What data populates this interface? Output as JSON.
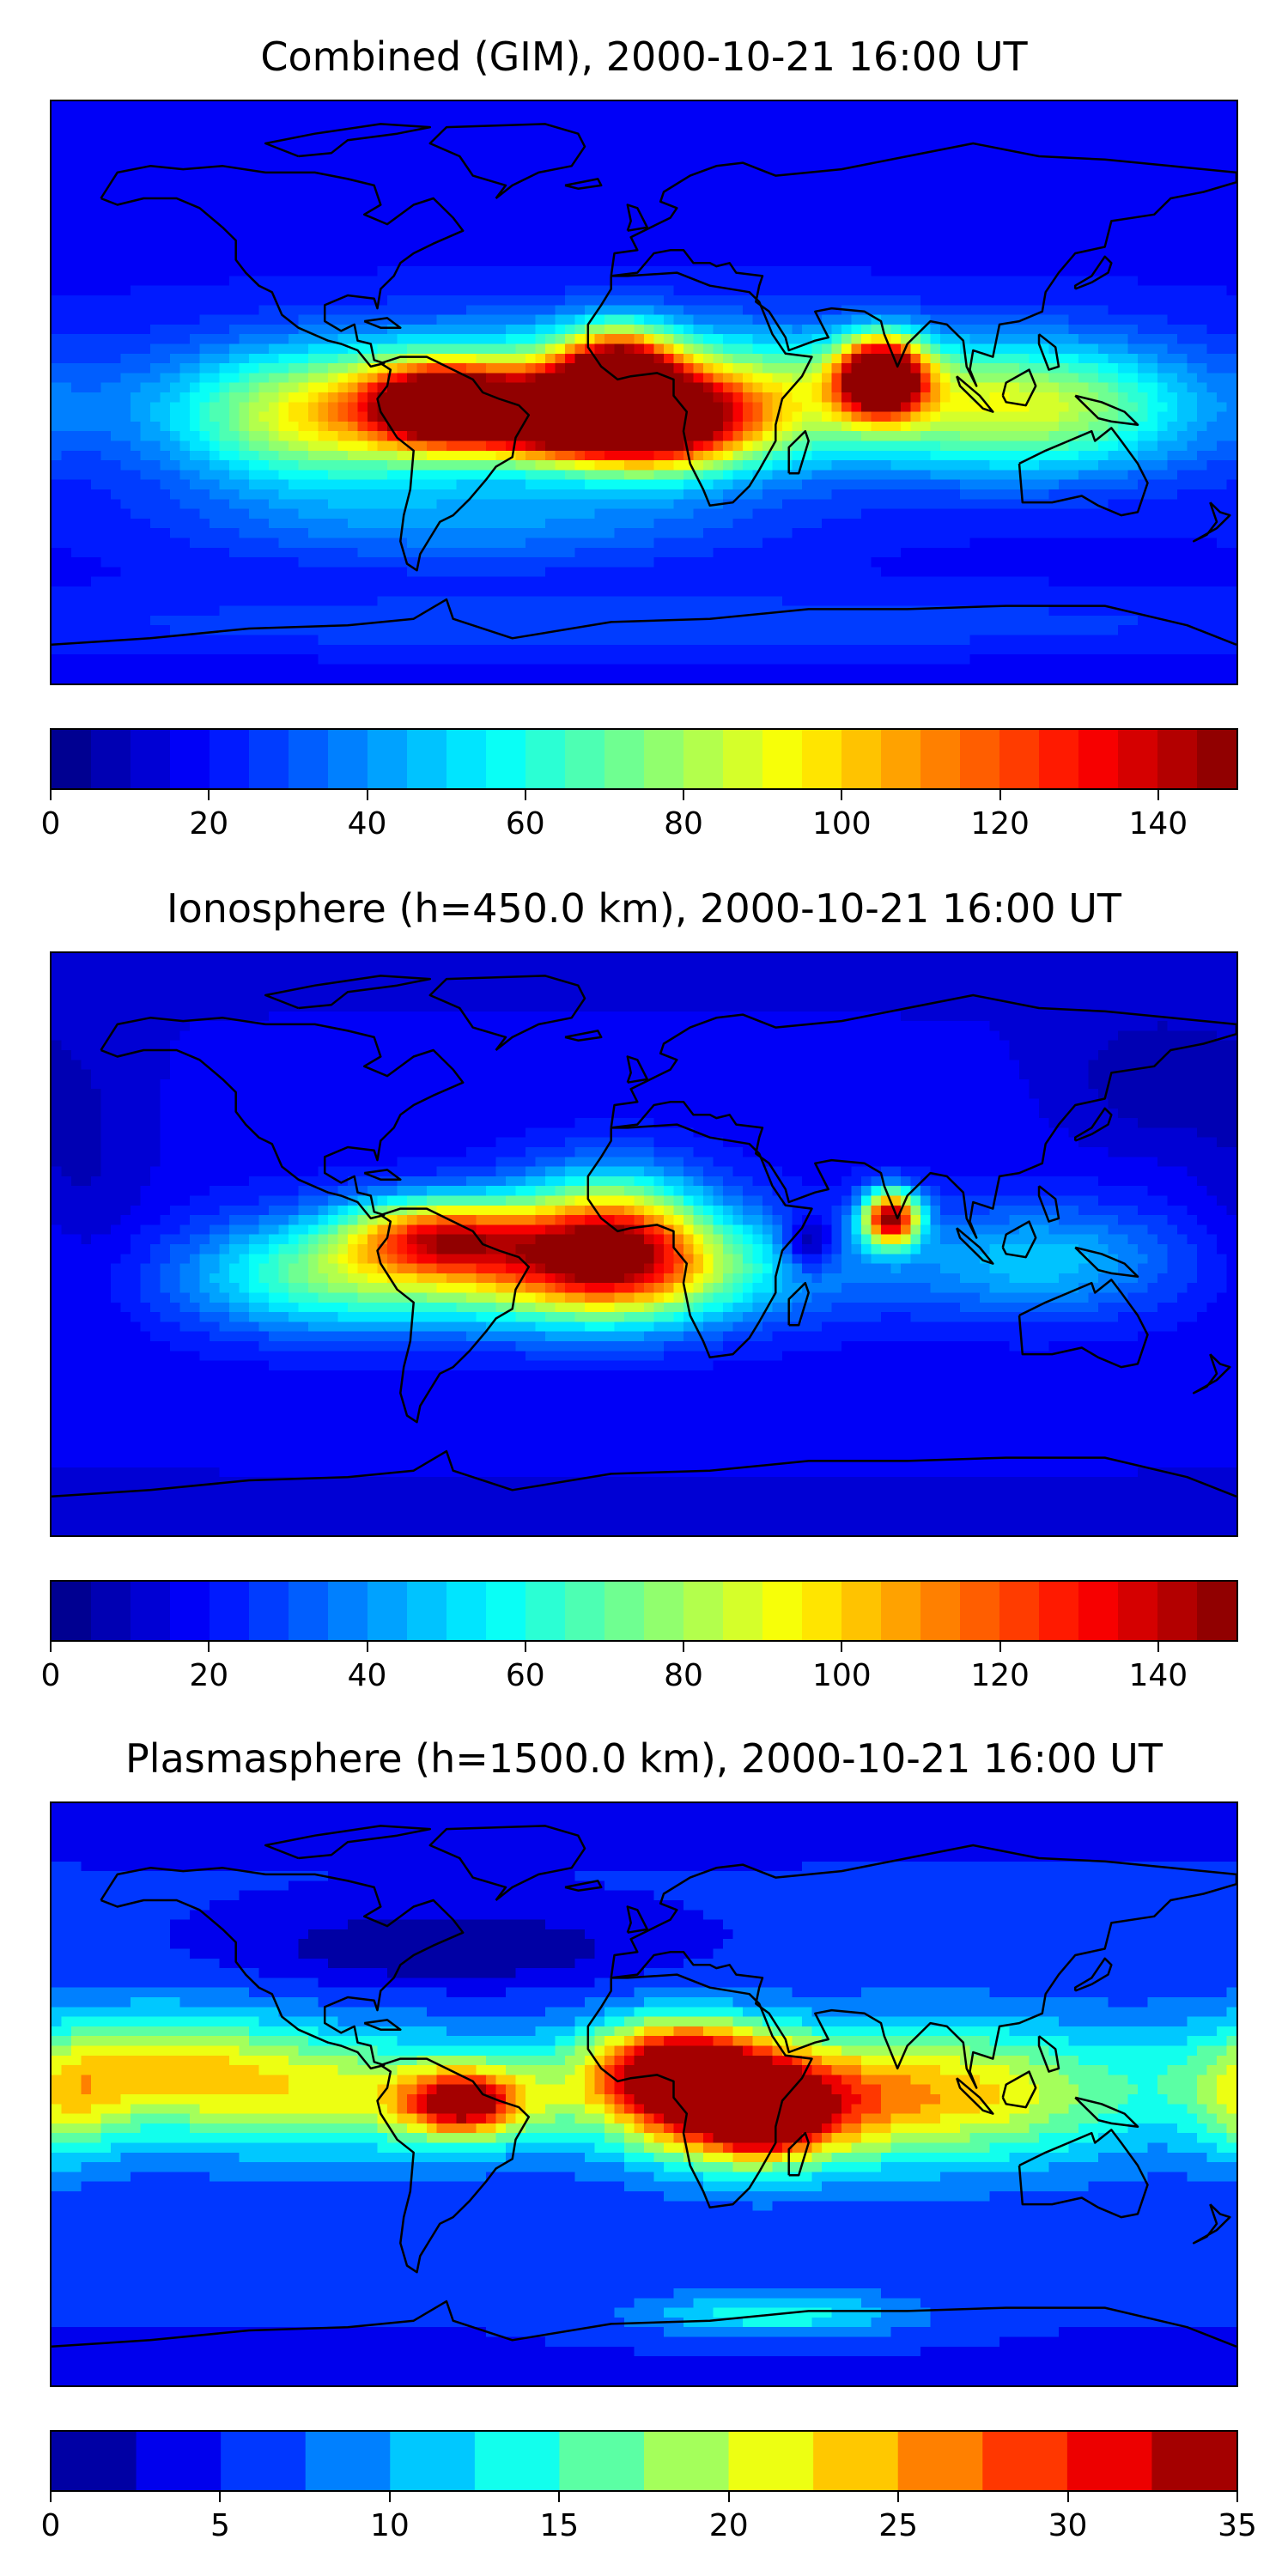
{
  "chart_data": [
    {
      "type": "heatmap",
      "title": "Combined (GIM), 2000-10-21 16:00 UT",
      "colormap": "jet",
      "clim": [
        0,
        150
      ],
      "levels_step": 5,
      "colorbar_ticks": [
        "0",
        "20",
        "40",
        "60",
        "80",
        "100",
        "120",
        "140"
      ],
      "colorbar_tick_values": [
        0,
        20,
        40,
        60,
        80,
        100,
        120,
        140
      ],
      "background": 20,
      "features": [
        {
          "lon": 72,
          "lat": 5,
          "value": 148,
          "sx": 9,
          "sy": 8
        },
        {
          "lon": -62,
          "lat": -4,
          "value": 112,
          "sx": 14,
          "sy": 8
        },
        {
          "lon": -8,
          "lat": 5,
          "value": 108,
          "sx": 12,
          "sy": 10
        },
        {
          "lon": -28,
          "lat": -8,
          "value": 98,
          "sx": 18,
          "sy": 8
        },
        {
          "lon": 5,
          "lat": -10,
          "value": 95,
          "sx": 20,
          "sy": 10
        },
        {
          "lon": -10,
          "lat": -2,
          "value": 82,
          "sx": 70,
          "sy": 14
        },
        {
          "lon": 120,
          "lat": -5,
          "value": 55,
          "sx": 35,
          "sy": 14
        },
        {
          "lon": -100,
          "lat": -10,
          "value": 48,
          "sx": 30,
          "sy": 14
        },
        {
          "lon": -50,
          "lat": -40,
          "value": 20,
          "sx": 60,
          "sy": 10
        },
        {
          "lon": 0,
          "lat": -72,
          "value": 12,
          "sx": 180,
          "sy": 8
        }
      ]
    },
    {
      "type": "heatmap",
      "title": "Ionosphere  (h=450.0 km), 2000-10-21 16:00 UT",
      "colormap": "jet",
      "clim": [
        0,
        150
      ],
      "levels_step": 5,
      "colorbar_ticks": [
        "0",
        "20",
        "40",
        "60",
        "80",
        "100",
        "120",
        "140"
      ],
      "colorbar_tick_values": [
        0,
        20,
        40,
        60,
        80,
        100,
        120,
        140
      ],
      "background": 18,
      "features": [
        {
          "lon": 75,
          "lat": 8,
          "value": 125,
          "sx": 6,
          "sy": 6
        },
        {
          "lon": -10,
          "lat": 2,
          "value": 85,
          "sx": 20,
          "sy": 14
        },
        {
          "lon": -62,
          "lat": 3,
          "value": 80,
          "sx": 20,
          "sy": 8
        },
        {
          "lon": -20,
          "lat": -8,
          "value": 75,
          "sx": 45,
          "sy": 12
        },
        {
          "lon": 50,
          "lat": 0,
          "value": -30,
          "sx": 5,
          "sy": 6
        },
        {
          "lon": 120,
          "lat": -5,
          "value": 30,
          "sx": 30,
          "sy": 12
        },
        {
          "lon": -100,
          "lat": -10,
          "value": 40,
          "sx": 30,
          "sy": 12
        },
        {
          "lon": 155,
          "lat": 50,
          "value": -10,
          "sx": 20,
          "sy": 15
        },
        {
          "lon": -170,
          "lat": 20,
          "value": -8,
          "sx": 15,
          "sy": 30
        }
      ]
    },
    {
      "type": "heatmap",
      "title": "Plasmasphere (h=1500.0 km), 2000-10-21 16:00 UT",
      "colormap": "jet",
      "clim": [
        0,
        35
      ],
      "levels_step": 2.5,
      "colorbar_ticks": [
        "0",
        "5",
        "10",
        "15",
        "20",
        "25",
        "30",
        "35"
      ],
      "colorbar_tick_values": [
        0,
        5,
        10,
        15,
        20,
        25,
        30,
        35
      ],
      "background": 6,
      "features": [
        {
          "lon": 37,
          "lat": -5,
          "value": 31,
          "sx": 8,
          "sy": 6
        },
        {
          "lon": 30,
          "lat": -5,
          "value": 24,
          "sx": 22,
          "sy": 12
        },
        {
          "lon": 10,
          "lat": 10,
          "value": 22,
          "sx": 18,
          "sy": 10
        },
        {
          "lon": -55,
          "lat": -3,
          "value": 20,
          "sx": 12,
          "sy": 7
        },
        {
          "lon": 90,
          "lat": 0,
          "value": 16,
          "sx": 45,
          "sy": 15
        },
        {
          "lon": -40,
          "lat": 0,
          "value": 9,
          "sx": 80,
          "sy": 12
        },
        {
          "lon": -150,
          "lat": 10,
          "value": 12,
          "sx": 30,
          "sy": 12
        },
        {
          "lon": -100,
          "lat": 0,
          "value": 7,
          "sx": 40,
          "sy": 14
        },
        {
          "lon": -175,
          "lat": -5,
          "value": 8,
          "sx": 12,
          "sy": 12
        },
        {
          "lon": -60,
          "lat": 45,
          "value": -6,
          "sx": 40,
          "sy": 8
        },
        {
          "lon": 40,
          "lat": -68,
          "value": 9,
          "sx": 30,
          "sy": 5
        }
      ]
    }
  ]
}
